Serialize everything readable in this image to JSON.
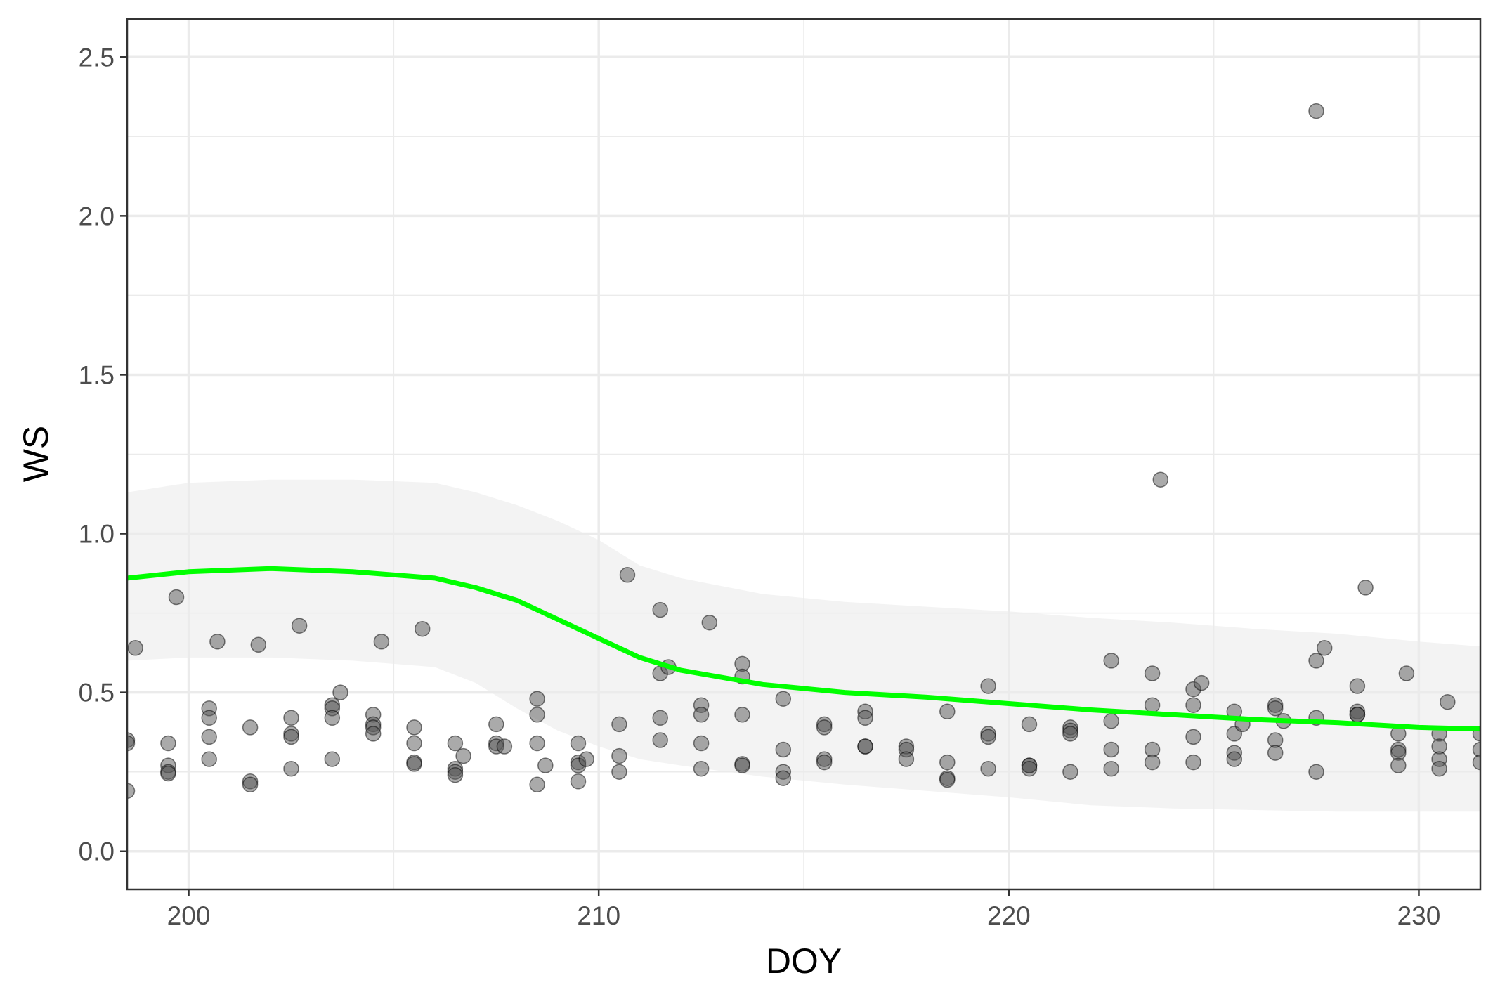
{
  "chart_data": {
    "type": "scatter",
    "title": "",
    "xlabel": "DOY",
    "ylabel": "WS",
    "xlim": [
      198.5,
      231.5
    ],
    "ylim": [
      -0.12,
      2.62
    ],
    "x_ticks": [
      200,
      210,
      220,
      230
    ],
    "y_ticks": [
      0.0,
      0.5,
      1.0,
      1.5,
      2.0,
      2.5
    ],
    "x_tick_labels": [
      "200",
      "210",
      "220",
      "230"
    ],
    "y_tick_labels": [
      "0.0",
      "0.5",
      "1.0",
      "1.5",
      "2.0",
      "2.5"
    ],
    "grid": true,
    "legend": "none",
    "colors": {
      "points": "#555555",
      "smooth_line": "#00ff00",
      "ribbon": "#ebebeb",
      "grid": "#ebebeb",
      "border": "#333333"
    },
    "points": [
      [
        198.5,
        0.35
      ],
      [
        198.5,
        0.34
      ],
      [
        198.5,
        0.19
      ],
      [
        198.7,
        0.64
      ],
      [
        199.5,
        0.34
      ],
      [
        199.5,
        0.27
      ],
      [
        199.5,
        0.25
      ],
      [
        199.5,
        0.245
      ],
      [
        199.7,
        0.8
      ],
      [
        200.5,
        0.45
      ],
      [
        200.5,
        0.42
      ],
      [
        200.5,
        0.36
      ],
      [
        200.5,
        0.29
      ],
      [
        200.7,
        0.66
      ],
      [
        201.5,
        0.39
      ],
      [
        201.5,
        0.22
      ],
      [
        201.5,
        0.21
      ],
      [
        201.7,
        0.65
      ],
      [
        202.5,
        0.42
      ],
      [
        202.5,
        0.37
      ],
      [
        202.5,
        0.36
      ],
      [
        202.5,
        0.26
      ],
      [
        202.7,
        0.71
      ],
      [
        203.5,
        0.46
      ],
      [
        203.5,
        0.45
      ],
      [
        203.5,
        0.42
      ],
      [
        203.5,
        0.29
      ],
      [
        203.7,
        0.5
      ],
      [
        204.5,
        0.43
      ],
      [
        204.5,
        0.4
      ],
      [
        204.5,
        0.39
      ],
      [
        204.5,
        0.37
      ],
      [
        204.7,
        0.66
      ],
      [
        205.5,
        0.39
      ],
      [
        205.5,
        0.34
      ],
      [
        205.5,
        0.28
      ],
      [
        205.5,
        0.275
      ],
      [
        205.7,
        0.7
      ],
      [
        206.5,
        0.34
      ],
      [
        206.5,
        0.26
      ],
      [
        206.5,
        0.25
      ],
      [
        206.5,
        0.24
      ],
      [
        206.7,
        0.3
      ],
      [
        207.5,
        0.4
      ],
      [
        207.5,
        0.34
      ],
      [
        207.5,
        0.33
      ],
      [
        207.7,
        0.33
      ],
      [
        208.5,
        0.48
      ],
      [
        208.5,
        0.43
      ],
      [
        208.5,
        0.34
      ],
      [
        208.5,
        0.21
      ],
      [
        208.7,
        0.27
      ],
      [
        209.5,
        0.34
      ],
      [
        209.5,
        0.28
      ],
      [
        209.5,
        0.27
      ],
      [
        209.5,
        0.22
      ],
      [
        209.7,
        0.29
      ],
      [
        210.5,
        0.4
      ],
      [
        210.5,
        0.3
      ],
      [
        210.5,
        0.25
      ],
      [
        210.7,
        0.87
      ],
      [
        211.5,
        0.76
      ],
      [
        211.5,
        0.56
      ],
      [
        211.5,
        0.42
      ],
      [
        211.5,
        0.35
      ],
      [
        211.7,
        0.58
      ],
      [
        212.5,
        0.46
      ],
      [
        212.5,
        0.43
      ],
      [
        212.5,
        0.34
      ],
      [
        212.5,
        0.26
      ],
      [
        212.7,
        0.72
      ],
      [
        213.5,
        0.59
      ],
      [
        213.5,
        0.55
      ],
      [
        213.5,
        0.43
      ],
      [
        213.5,
        0.275
      ],
      [
        213.5,
        0.27
      ],
      [
        214.5,
        0.48
      ],
      [
        214.5,
        0.32
      ],
      [
        214.5,
        0.25
      ],
      [
        214.5,
        0.23
      ],
      [
        215.5,
        0.4
      ],
      [
        215.5,
        0.39
      ],
      [
        215.5,
        0.29
      ],
      [
        215.5,
        0.28
      ],
      [
        216.5,
        0.44
      ],
      [
        216.5,
        0.42
      ],
      [
        216.5,
        0.33
      ],
      [
        216.5,
        0.33
      ],
      [
        217.5,
        0.33
      ],
      [
        217.5,
        0.32
      ],
      [
        217.5,
        0.29
      ],
      [
        218.5,
        0.44
      ],
      [
        218.5,
        0.28
      ],
      [
        218.5,
        0.23
      ],
      [
        218.5,
        0.225
      ],
      [
        219.5,
        0.52
      ],
      [
        219.5,
        0.37
      ],
      [
        219.5,
        0.36
      ],
      [
        219.5,
        0.26
      ],
      [
        220.5,
        0.4
      ],
      [
        220.5,
        0.27
      ],
      [
        220.5,
        0.27
      ],
      [
        220.5,
        0.26
      ],
      [
        221.5,
        0.39
      ],
      [
        221.5,
        0.38
      ],
      [
        221.5,
        0.37
      ],
      [
        221.5,
        0.25
      ],
      [
        222.5,
        0.6
      ],
      [
        222.5,
        0.41
      ],
      [
        222.5,
        0.32
      ],
      [
        222.5,
        0.26
      ],
      [
        223.5,
        0.56
      ],
      [
        223.5,
        0.46
      ],
      [
        223.5,
        0.32
      ],
      [
        223.5,
        0.28
      ],
      [
        223.7,
        1.17
      ],
      [
        224.5,
        0.51
      ],
      [
        224.5,
        0.46
      ],
      [
        224.5,
        0.36
      ],
      [
        224.5,
        0.28
      ],
      [
        224.7,
        0.53
      ],
      [
        225.5,
        0.44
      ],
      [
        225.5,
        0.37
      ],
      [
        225.5,
        0.31
      ],
      [
        225.5,
        0.29
      ],
      [
        225.7,
        0.4
      ],
      [
        226.5,
        0.46
      ],
      [
        226.5,
        0.45
      ],
      [
        226.5,
        0.35
      ],
      [
        226.5,
        0.31
      ],
      [
        226.7,
        0.41
      ],
      [
        227.5,
        2.33
      ],
      [
        227.5,
        0.6
      ],
      [
        227.5,
        0.42
      ],
      [
        227.5,
        0.25
      ],
      [
        227.7,
        0.64
      ],
      [
        228.5,
        0.52
      ],
      [
        228.5,
        0.44
      ],
      [
        228.5,
        0.43
      ],
      [
        228.5,
        0.43
      ],
      [
        228.7,
        0.83
      ],
      [
        229.5,
        0.37
      ],
      [
        229.5,
        0.32
      ],
      [
        229.5,
        0.31
      ],
      [
        229.5,
        0.27
      ],
      [
        229.7,
        0.56
      ],
      [
        230.5,
        0.37
      ],
      [
        230.5,
        0.33
      ],
      [
        230.5,
        0.29
      ],
      [
        230.5,
        0.26
      ],
      [
        230.7,
        0.47
      ],
      [
        231.5,
        0.37
      ],
      [
        231.5,
        0.32
      ],
      [
        231.5,
        0.28
      ]
    ],
    "smooth": {
      "x": [
        198.5,
        200,
        202,
        204,
        206,
        207,
        208,
        209,
        210,
        211,
        212,
        214,
        216,
        218,
        220,
        222,
        224,
        226,
        228,
        230,
        231.5
      ],
      "y": [
        0.86,
        0.88,
        0.89,
        0.88,
        0.86,
        0.83,
        0.79,
        0.73,
        0.67,
        0.61,
        0.57,
        0.525,
        0.5,
        0.485,
        0.465,
        0.445,
        0.43,
        0.415,
        0.405,
        0.39,
        0.385
      ],
      "ymin": [
        0.6,
        0.61,
        0.61,
        0.6,
        0.58,
        0.53,
        0.45,
        0.38,
        0.33,
        0.29,
        0.27,
        0.235,
        0.21,
        0.19,
        0.17,
        0.145,
        0.135,
        0.13,
        0.125,
        0.125,
        0.125
      ],
      "ymax": [
        1.13,
        1.16,
        1.17,
        1.17,
        1.16,
        1.13,
        1.09,
        1.04,
        0.98,
        0.9,
        0.86,
        0.81,
        0.785,
        0.77,
        0.755,
        0.735,
        0.72,
        0.7,
        0.685,
        0.66,
        0.645
      ]
    }
  }
}
